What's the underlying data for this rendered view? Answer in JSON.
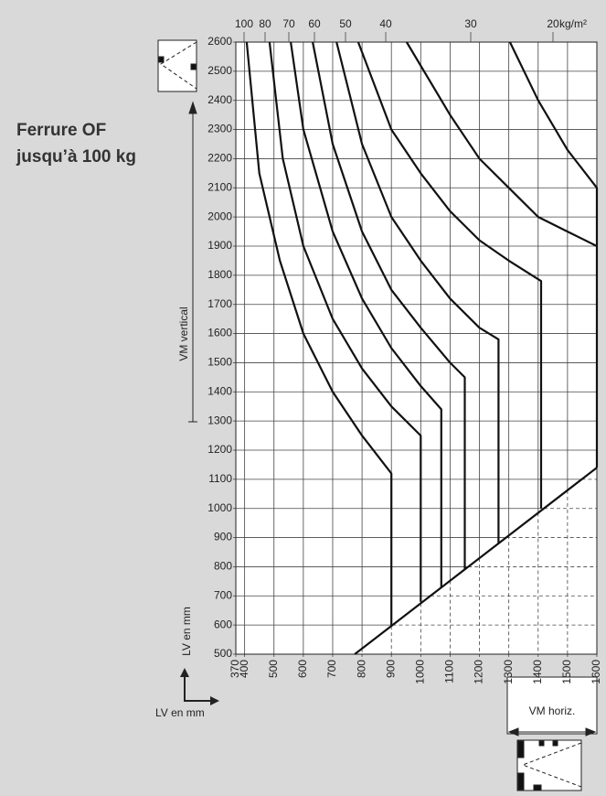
{
  "chart_data": {
    "type": "line",
    "title_lines": [
      "Ferrure OF",
      "jusqu’à 100 kg"
    ],
    "y_axis_label": "VM vertical",
    "y_unit_label": "LV en mm",
    "x_unit_label": "LV en mm",
    "x_axis_label": "VM horiz.",
    "series_unit": "kg/m²",
    "xlim": [
      370,
      1600
    ],
    "ylim": [
      500,
      2600
    ],
    "xticks": [
      370,
      400,
      500,
      600,
      700,
      800,
      900,
      1000,
      1100,
      1200,
      1300,
      1400,
      1500,
      1600
    ],
    "yticks": [
      500,
      600,
      700,
      800,
      900,
      1000,
      1100,
      1200,
      1300,
      1400,
      1500,
      1600,
      1700,
      1800,
      1900,
      2000,
      2100,
      2200,
      2300,
      2400,
      2500,
      2600
    ],
    "grid": true,
    "color": "#111111",
    "series": [
      {
        "name": "100",
        "x": [
          407,
          450,
          520,
          600,
          700,
          800,
          900,
          900
        ],
        "values": [
          2600,
          2150,
          1850,
          1600,
          1400,
          1250,
          1120,
          600
        ]
      },
      {
        "name": "80",
        "x": [
          485,
          530,
          600,
          700,
          800,
          900,
          1000,
          1000
        ],
        "values": [
          2600,
          2200,
          1900,
          1650,
          1480,
          1350,
          1250,
          680
        ]
      },
      {
        "name": "70",
        "x": [
          557,
          600,
          700,
          800,
          900,
          1000,
          1070,
          1070
        ],
        "values": [
          2600,
          2300,
          1950,
          1720,
          1550,
          1420,
          1340,
          730
        ]
      },
      {
        "name": "60",
        "x": [
          632,
          700,
          800,
          900,
          1000,
          1100,
          1150,
          1150
        ],
        "values": [
          2600,
          2250,
          1950,
          1750,
          1620,
          1500,
          1450,
          790
        ]
      },
      {
        "name": "50",
        "x": [
          713,
          800,
          900,
          1000,
          1100,
          1200,
          1265,
          1265
        ],
        "values": [
          2600,
          2250,
          2000,
          1850,
          1720,
          1620,
          1580,
          880
        ]
      },
      {
        "name": "40",
        "x": [
          787,
          900,
          1000,
          1100,
          1200,
          1300,
          1410,
          1410
        ],
        "values": [
          2600,
          2300,
          2150,
          2020,
          1920,
          1850,
          1780,
          1000
        ]
      },
      {
        "name": "30",
        "x": [
          952,
          1100,
          1200,
          1300,
          1400,
          1500,
          1600
        ],
        "values": [
          2600,
          2350,
          2200,
          2100,
          2000,
          1950,
          1900
        ]
      },
      {
        "name": "20",
        "x": [
          1304,
          1400,
          1500,
          1600,
          1600
        ],
        "values": [
          2600,
          2400,
          2230,
          2100,
          1140
        ]
      }
    ],
    "limit_line": {
      "x": [
        775,
        1600
      ],
      "values": [
        500,
        1140
      ]
    }
  }
}
